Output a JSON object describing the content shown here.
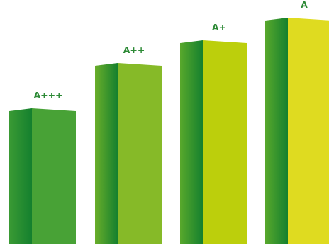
{
  "chart_data": {
    "type": "bar",
    "title": "",
    "xlabel": "",
    "ylabel": "",
    "categories": [
      "A+++",
      "A++",
      "A+",
      "A"
    ],
    "values": [
      188,
      252,
      284,
      316
    ],
    "ylim": [
      0,
      345
    ],
    "grid": false,
    "legend": "none",
    "colors": {
      "A+++": {
        "front": "#48a236",
        "side_dark": "#14802e",
        "side_light": "#3a9a34",
        "top": "#3f9934",
        "label": "#2d8a36"
      },
      "A++": {
        "front": "#86ba28",
        "side_dark": "#14802e",
        "side_light": "#6aae2a",
        "top": "#5aa530",
        "label": "#2d8a36"
      },
      "A+": {
        "front": "#bccf0c",
        "side_dark": "#14802e",
        "side_light": "#58a82c",
        "top": "#4fa130",
        "label": "#2d8a36"
      },
      "A": {
        "front": "#dfdb20",
        "side_dark": "#14802e",
        "side_light": "#58a82c",
        "top": "#4fa130",
        "label": "#2d8a36"
      }
    }
  }
}
